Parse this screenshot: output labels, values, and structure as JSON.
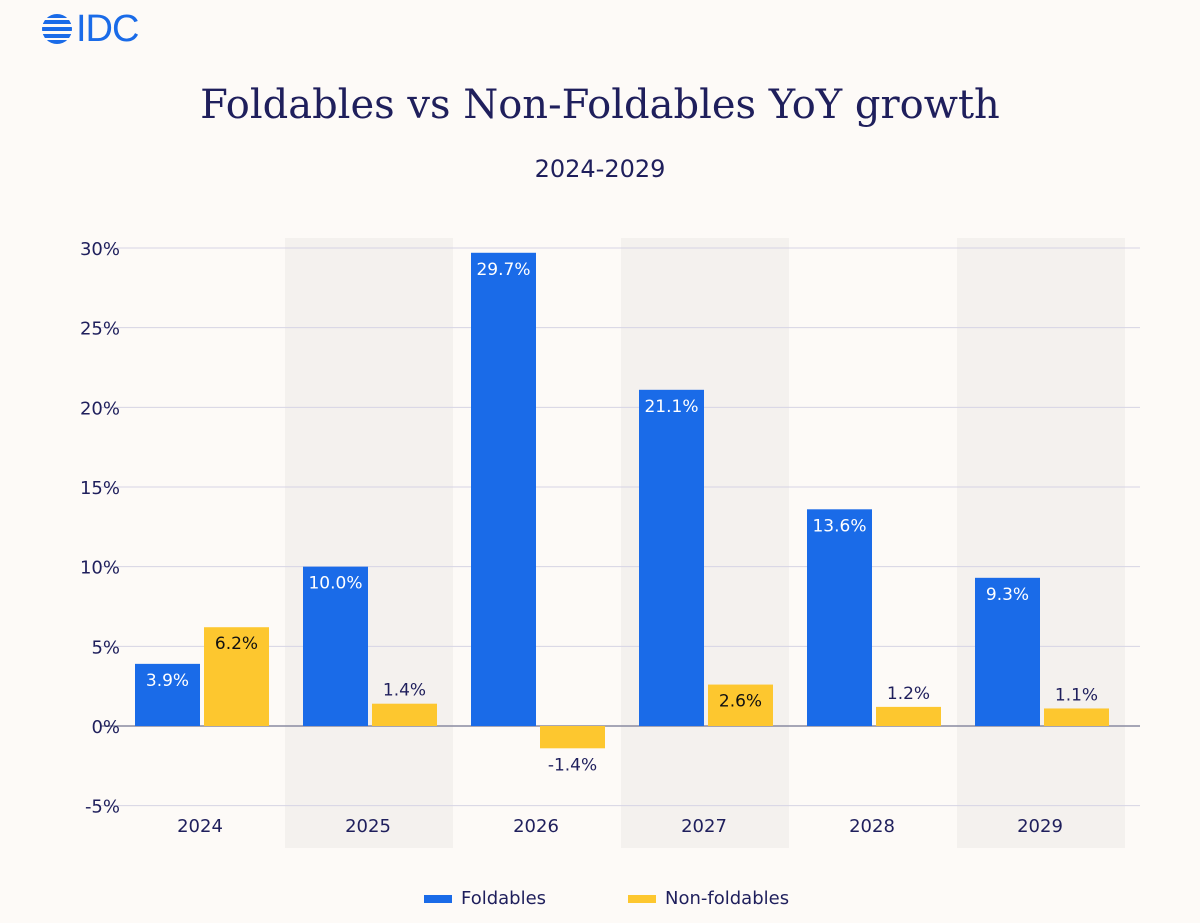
{
  "logo": {
    "text": "IDC"
  },
  "colors": {
    "foldables": "#1a6be8",
    "non_foldables": "#fdc72f",
    "text": "#1f1f5c",
    "band": "#f4f1ee",
    "background": "#fdfaf7"
  },
  "chart_data": {
    "type": "bar",
    "title": "Foldables vs Non-Foldables YoY growth",
    "subtitle": "2024-2029",
    "categories": [
      "2024",
      "2025",
      "2026",
      "2027",
      "2028",
      "2029"
    ],
    "series": [
      {
        "name": "Foldables",
        "values": [
          3.9,
          10.0,
          29.7,
          21.1,
          13.6,
          9.3
        ],
        "labels": [
          "3.9%",
          "10.0%",
          "29.7%",
          "21.1%",
          "13.6%",
          "9.3%"
        ]
      },
      {
        "name": "Non-foldables",
        "values": [
          6.2,
          1.4,
          -1.4,
          2.6,
          1.2,
          1.1
        ],
        "labels": [
          "6.2%",
          "1.4%",
          "-1.4%",
          "2.6%",
          "1.2%",
          "1.1%"
        ]
      }
    ],
    "yticks": [
      30,
      25,
      20,
      15,
      10,
      5,
      0,
      -5
    ],
    "ytick_labels": [
      "30%",
      "25%",
      "20%",
      "15%",
      "10%",
      "5%",
      "0%",
      "-5%"
    ],
    "ylim": [
      -5,
      30
    ],
    "grid": true,
    "legend": "bottom"
  }
}
